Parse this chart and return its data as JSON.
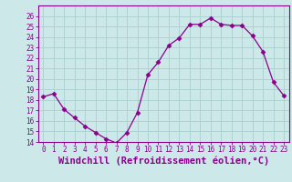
{
  "x": [
    0,
    1,
    2,
    3,
    4,
    5,
    6,
    7,
    8,
    9,
    10,
    11,
    12,
    13,
    14,
    15,
    16,
    17,
    18,
    19,
    20,
    21,
    22,
    23
  ],
  "y": [
    18.3,
    18.6,
    17.1,
    16.3,
    15.5,
    14.9,
    14.3,
    13.9,
    14.9,
    16.8,
    20.4,
    21.6,
    23.2,
    23.9,
    25.2,
    25.2,
    25.8,
    25.2,
    25.1,
    25.1,
    24.1,
    22.6,
    19.7,
    18.4
  ],
  "line_color": "#8B008B",
  "marker": "D",
  "marker_size": 2.5,
  "bg_color": "#cce8e8",
  "grid_color": "#aad0d0",
  "xlabel": "Windchill (Refroidissement éolien,°C)",
  "xlabel_color": "#8B008B",
  "ylim": [
    14,
    27
  ],
  "yticks": [
    14,
    15,
    16,
    17,
    18,
    19,
    20,
    21,
    22,
    23,
    24,
    25,
    26
  ],
  "xtick_labels": [
    "0",
    "1",
    "2",
    "3",
    "4",
    "5",
    "6",
    "7",
    "8",
    "9",
    "10",
    "11",
    "12",
    "13",
    "14",
    "15",
    "16",
    "17",
    "18",
    "19",
    "20",
    "21",
    "22",
    "23"
  ],
  "tick_color": "#8B008B",
  "tick_fontsize": 5.5,
  "xlabel_fontsize": 7.5,
  "spine_color": "#8B008B"
}
